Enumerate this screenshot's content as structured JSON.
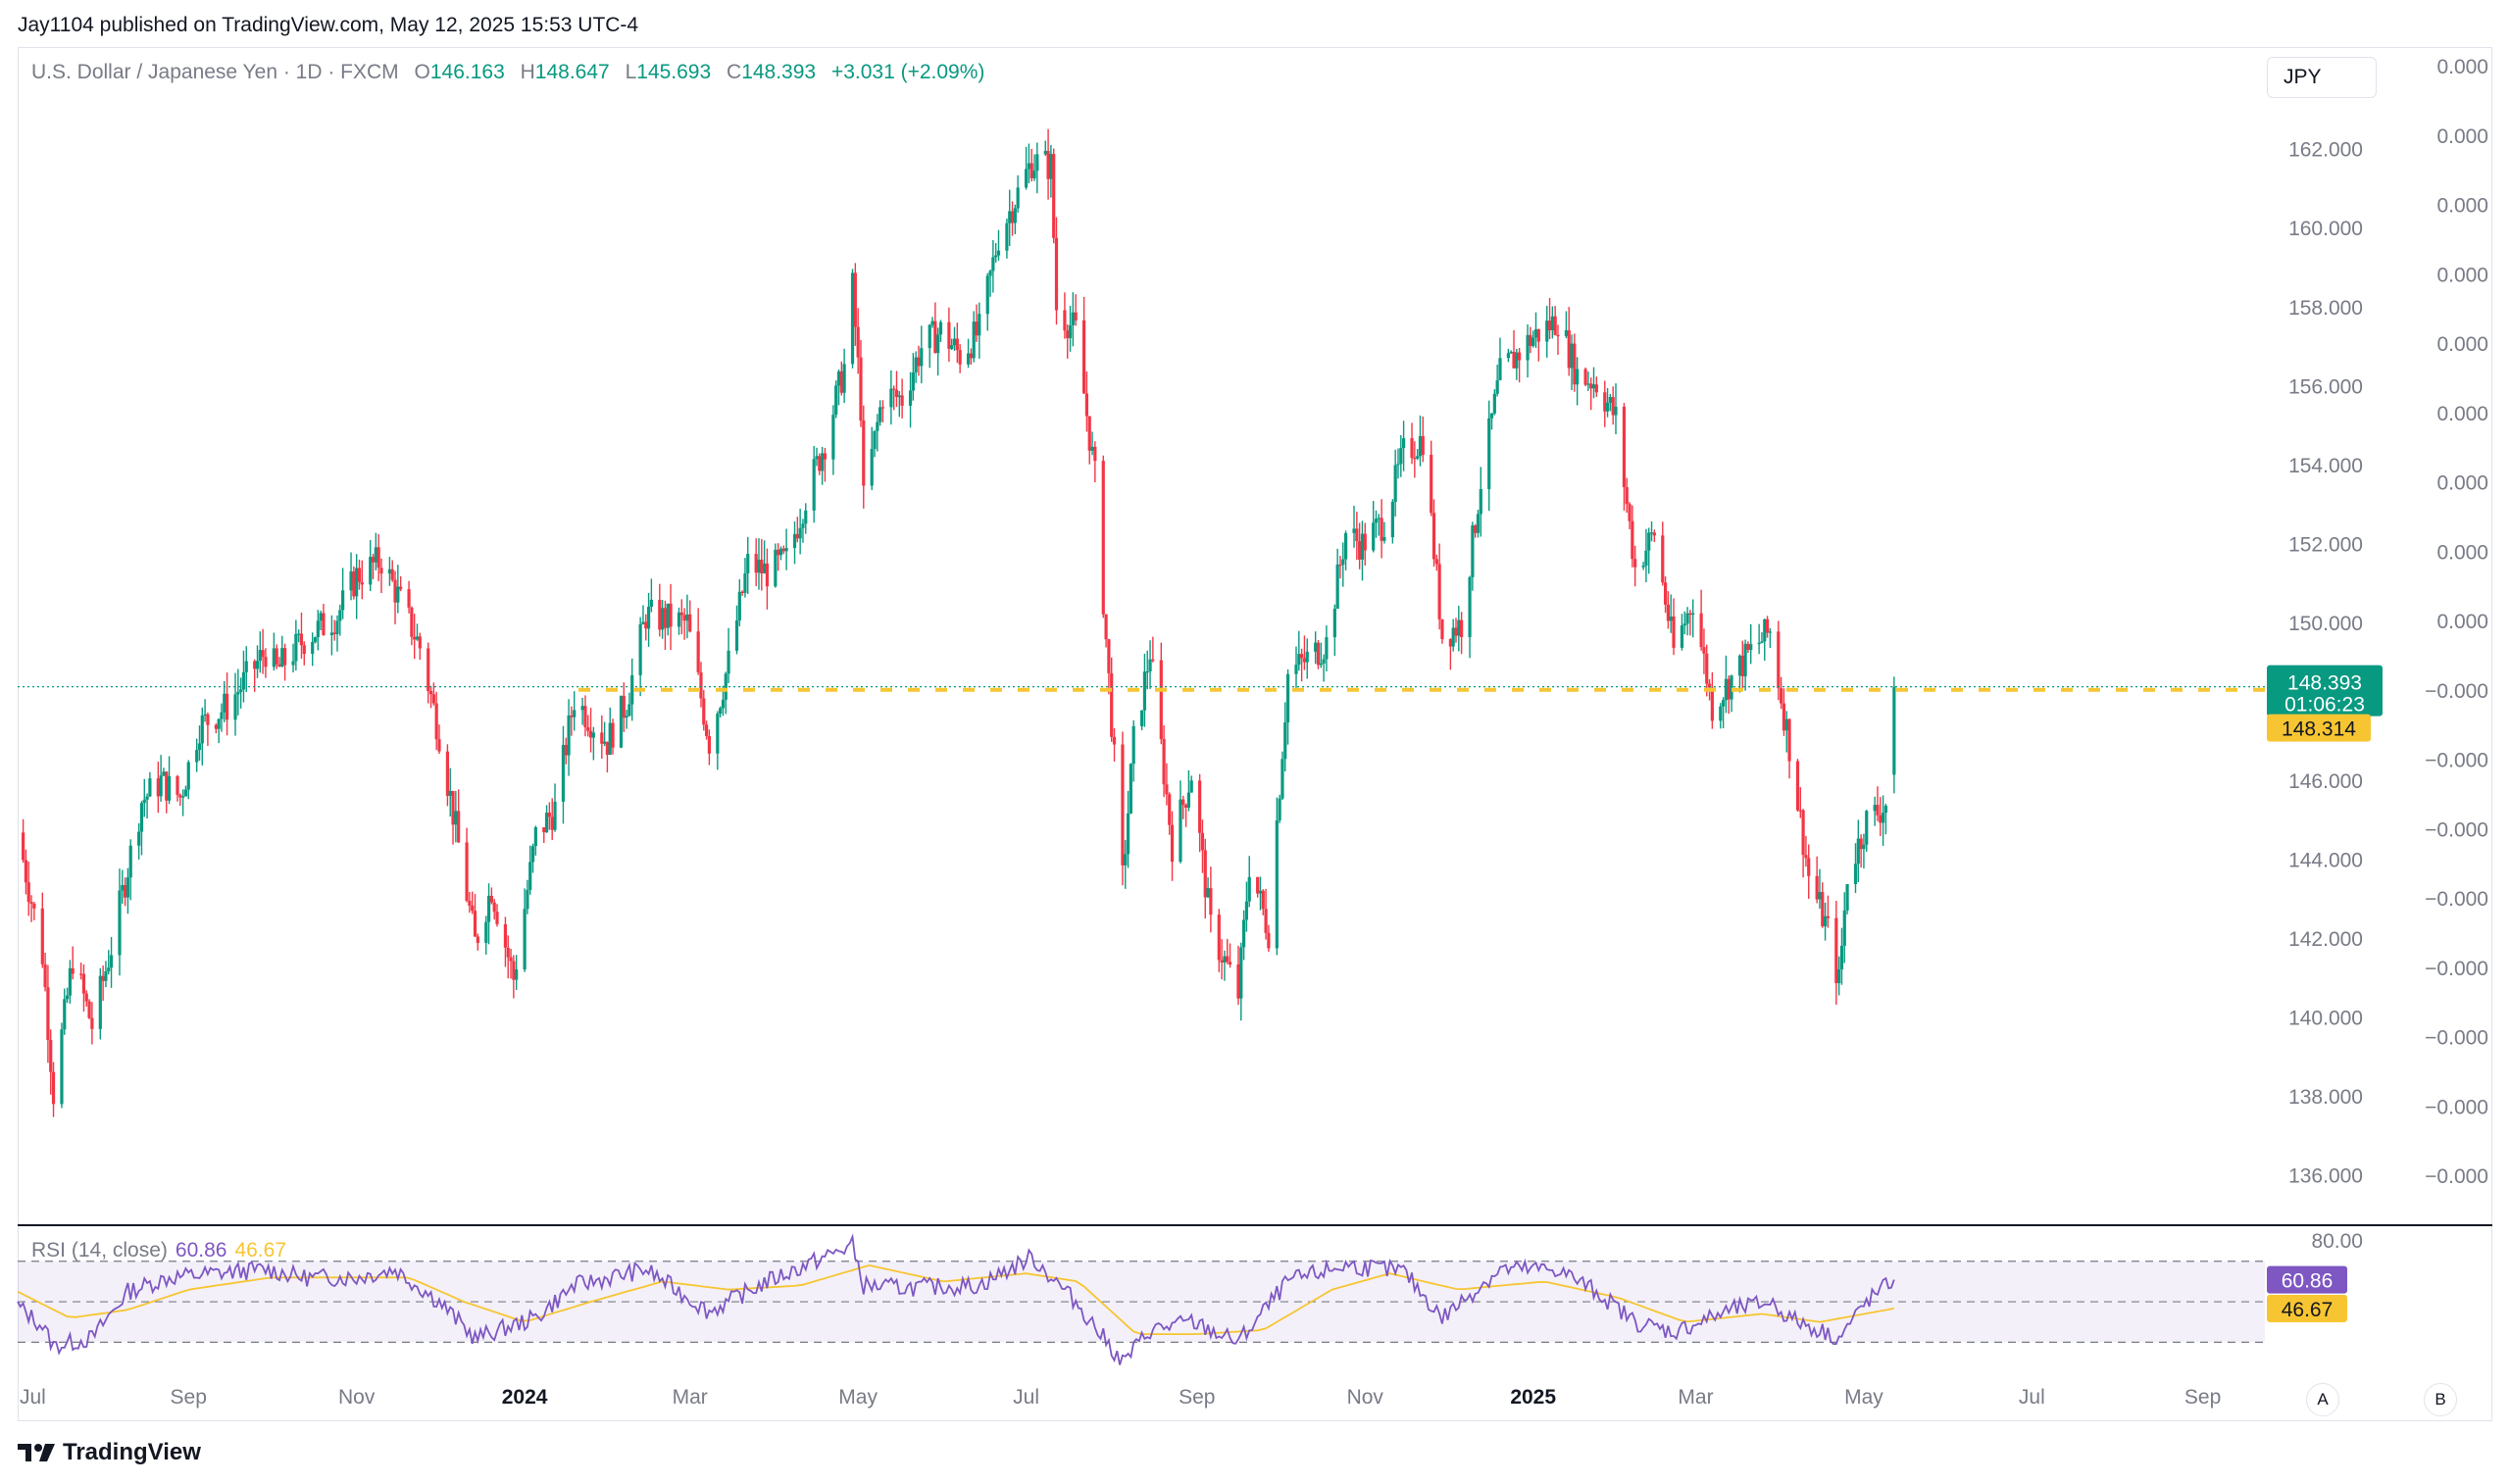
{
  "header": {
    "publisher_line": "Jay1104 published on TradingView.com, May 12, 2025 15:53 UTC-4"
  },
  "legend": {
    "symbol": "U.S. Dollar / Japanese Yen · 1D · FXCM",
    "open_label": "O",
    "open": "146.163",
    "high_label": "H",
    "high": "148.647",
    "low_label": "L",
    "low": "145.693",
    "close_label": "C",
    "close": "148.393",
    "change": "+3.031 (+2.09%)"
  },
  "currency_button": "JPY",
  "price_tags": {
    "last_price": "148.393",
    "countdown": "01:06:23",
    "reference_price": "148.314"
  },
  "rsi": {
    "title": "RSI (14, close)",
    "value": "60.86",
    "ma_value": "46.67"
  },
  "footer": {
    "brand": "TradingView"
  },
  "scale_buttons": {
    "auto": "A",
    "log": "B"
  },
  "colors": {
    "up": "#089981",
    "down": "#f23645",
    "rsi": "#7e57c2",
    "rsi_ma": "#f7c531",
    "ref_line": "#f7c531",
    "last_line": "#089981"
  },
  "icons": [
    "tradingview-logo-icon"
  ],
  "chart_data": [
    {
      "type": "candlestick",
      "title": "U.S. Dollar / Japanese Yen · 1D · FXCM",
      "y_axis": {
        "ticks": [
          136,
          138,
          140,
          142,
          144,
          146,
          150,
          152,
          154,
          156,
          158,
          160,
          162
        ],
        "tick_labels": [
          "136.000",
          "138.000",
          "140.000",
          "142.000",
          "144.000",
          "146.000",
          "150.000",
          "152.000",
          "154.000",
          "156.000",
          "158.000",
          "160.000",
          "162.000"
        ],
        "ylim": [
          134.8,
          164.6
        ]
      },
      "secondary_axis_labels": [
        "0.000",
        "0.000",
        "0.000",
        "0.000",
        "0.000",
        "0.000",
        "0.000",
        "0.000",
        "0.000",
        "−0.000",
        "−0.000",
        "−0.000",
        "−0.000",
        "−0.000",
        "−0.000",
        "−0.000",
        "−0.000"
      ],
      "x_axis": {
        "tick_labels": [
          "Jul",
          "Sep",
          "Nov",
          "2024",
          "Mar",
          "May",
          "Jul",
          "Sep",
          "Nov",
          "2025",
          "Mar",
          "May",
          "Jul",
          "Sep"
        ],
        "range": [
          "2023-07-01",
          "2025-09-20"
        ]
      },
      "price_path": [
        [
          "2023-07-01",
          144.7
        ],
        [
          "2023-07-10",
          141.6
        ],
        [
          "2023-07-14",
          138.1
        ],
        [
          "2023-07-21",
          141.5
        ],
        [
          "2023-07-28",
          139.8
        ],
        [
          "2023-08-04",
          141.8
        ],
        [
          "2023-08-15",
          145.5
        ],
        [
          "2023-08-22",
          146.0
        ],
        [
          "2023-08-29",
          145.6
        ],
        [
          "2023-09-05",
          147.4
        ],
        [
          "2023-09-15",
          147.9
        ],
        [
          "2023-09-29",
          149.3
        ],
        [
          "2023-10-03",
          148.8
        ],
        [
          "2023-10-13",
          149.6
        ],
        [
          "2023-10-25",
          150.2
        ],
        [
          "2023-11-01",
          151.2
        ],
        [
          "2023-11-10",
          151.6
        ],
        [
          "2023-11-16",
          150.7
        ],
        [
          "2023-11-24",
          149.4
        ],
        [
          "2023-12-01",
          147.2
        ],
        [
          "2023-12-07",
          144.8
        ],
        [
          "2023-12-14",
          141.9
        ],
        [
          "2023-12-20",
          143.3
        ],
        [
          "2023-12-28",
          141.0
        ],
        [
          "2024-01-05",
          144.6
        ],
        [
          "2024-01-12",
          145.3
        ],
        [
          "2024-01-19",
          148.1
        ],
        [
          "2024-01-31",
          147.0
        ],
        [
          "2024-02-07",
          148.0
        ],
        [
          "2024-02-14",
          150.2
        ],
        [
          "2024-02-29",
          150.0
        ],
        [
          "2024-03-08",
          147.0
        ],
        [
          "2024-03-15",
          149.0
        ],
        [
          "2024-03-22",
          151.5
        ],
        [
          "2024-03-29",
          151.3
        ],
        [
          "2024-04-05",
          151.6
        ],
        [
          "2024-04-12",
          153.2
        ],
        [
          "2024-04-19",
          154.6
        ],
        [
          "2024-04-26",
          156.5
        ],
        [
          "2024-04-29",
          158.5
        ],
        [
          "2024-05-02",
          155.5
        ],
        [
          "2024-05-03",
          153.1
        ],
        [
          "2024-05-10",
          155.8
        ],
        [
          "2024-05-17",
          155.7
        ],
        [
          "2024-05-24",
          157.0
        ],
        [
          "2024-05-31",
          157.4
        ],
        [
          "2024-06-07",
          156.8
        ],
        [
          "2024-06-14",
          157.4
        ],
        [
          "2024-06-21",
          159.8
        ],
        [
          "2024-06-28",
          160.9
        ],
        [
          "2024-07-03",
          161.7
        ],
        [
          "2024-07-10",
          161.6
        ],
        [
          "2024-07-12",
          158.0
        ],
        [
          "2024-07-19",
          157.4
        ],
        [
          "2024-07-26",
          153.7
        ],
        [
          "2024-08-02",
          146.5
        ],
        [
          "2024-08-05",
          143.5
        ],
        [
          "2024-08-09",
          147.0
        ],
        [
          "2024-08-15",
          149.3
        ],
        [
          "2024-08-23",
          144.4
        ],
        [
          "2024-08-30",
          146.2
        ],
        [
          "2024-09-06",
          142.3
        ],
        [
          "2024-09-16",
          140.6
        ],
        [
          "2024-09-20",
          143.9
        ],
        [
          "2024-09-27",
          142.2
        ],
        [
          "2024-10-04",
          148.7
        ],
        [
          "2024-10-11",
          149.1
        ],
        [
          "2024-10-18",
          149.5
        ],
        [
          "2024-10-25",
          152.3
        ],
        [
          "2024-10-31",
          152.0
        ],
        [
          "2024-11-08",
          152.6
        ],
        [
          "2024-11-15",
          154.3
        ],
        [
          "2024-11-22",
          154.7
        ],
        [
          "2024-11-29",
          149.7
        ],
        [
          "2024-12-06",
          150.0
        ],
        [
          "2024-12-13",
          153.6
        ],
        [
          "2024-12-20",
          156.3
        ],
        [
          "2024-12-31",
          157.2
        ],
        [
          "2025-01-10",
          157.7
        ],
        [
          "2025-01-17",
          156.3
        ],
        [
          "2025-01-24",
          156.1
        ],
        [
          "2025-01-31",
          155.2
        ],
        [
          "2025-02-07",
          151.4
        ],
        [
          "2025-02-14",
          152.3
        ],
        [
          "2025-02-21",
          149.3
        ],
        [
          "2025-02-28",
          150.6
        ],
        [
          "2025-03-07",
          147.9
        ],
        [
          "2025-03-14",
          148.6
        ],
        [
          "2025-03-21",
          149.3
        ],
        [
          "2025-03-28",
          149.8
        ],
        [
          "2025-04-04",
          146.9
        ],
        [
          "2025-04-11",
          143.6
        ],
        [
          "2025-04-18",
          142.2
        ],
        [
          "2025-04-22",
          140.9
        ],
        [
          "2025-04-25",
          143.6
        ],
        [
          "2025-05-02",
          145.0
        ],
        [
          "2025-05-09",
          145.4
        ],
        [
          "2025-05-12",
          148.393
        ]
      ],
      "last": {
        "date": "2025-05-12",
        "open": 146.163,
        "high": 148.647,
        "low": 145.693,
        "close": 148.393
      },
      "reference_line": 148.314
    },
    {
      "type": "line",
      "title": "RSI (14, close)",
      "y_axis": {
        "ticks": [
          80
        ],
        "tick_labels": [
          "80.00"
        ],
        "bands": [
          70,
          50,
          30
        ],
        "ylim": [
          20,
          82
        ]
      },
      "series": [
        {
          "name": "RSI",
          "points": [
            [
              "2023-07-01",
              48
            ],
            [
              "2023-07-10",
              38
            ],
            [
              "2023-07-14",
              28
            ],
            [
              "2023-07-28",
              32
            ],
            [
              "2023-08-10",
              55
            ],
            [
              "2023-08-25",
              62
            ],
            [
              "2023-09-10",
              64
            ],
            [
              "2023-09-29",
              66
            ],
            [
              "2023-10-13",
              62
            ],
            [
              "2023-11-01",
              62
            ],
            [
              "2023-11-15",
              66
            ],
            [
              "2023-12-01",
              50
            ],
            [
              "2023-12-14",
              32
            ],
            [
              "2024-01-05",
              42
            ],
            [
              "2024-01-19",
              58
            ],
            [
              "2024-02-14",
              66
            ],
            [
              "2024-03-08",
              45
            ],
            [
              "2024-03-29",
              60
            ],
            [
              "2024-04-12",
              68
            ],
            [
              "2024-04-29",
              78
            ],
            [
              "2024-05-03",
              58
            ],
            [
              "2024-05-17",
              57
            ],
            [
              "2024-06-14",
              58
            ],
            [
              "2024-07-03",
              72
            ],
            [
              "2024-07-19",
              50
            ],
            [
              "2024-08-05",
              20
            ],
            [
              "2024-08-15",
              36
            ],
            [
              "2024-08-30",
              40
            ],
            [
              "2024-09-16",
              30
            ],
            [
              "2024-10-04",
              60
            ],
            [
              "2024-10-25",
              68
            ],
            [
              "2024-11-15",
              65
            ],
            [
              "2024-11-29",
              42
            ],
            [
              "2024-12-20",
              66
            ],
            [
              "2025-01-10",
              66
            ],
            [
              "2025-01-24",
              55
            ],
            [
              "2025-02-07",
              40
            ],
            [
              "2025-02-21",
              35
            ],
            [
              "2025-03-14",
              46
            ],
            [
              "2025-03-28",
              50
            ],
            [
              "2025-04-04",
              42
            ],
            [
              "2025-04-22",
              32
            ],
            [
              "2025-05-02",
              50
            ],
            [
              "2025-05-12",
              60.86
            ]
          ]
        },
        {
          "name": "RSI-based MA",
          "points": [
            [
              "2023-07-01",
              55
            ],
            [
              "2023-07-20",
              42
            ],
            [
              "2023-08-10",
              46
            ],
            [
              "2023-09-01",
              56
            ],
            [
              "2023-10-01",
              62
            ],
            [
              "2023-11-01",
              62
            ],
            [
              "2023-11-20",
              62
            ],
            [
              "2023-12-10",
              50
            ],
            [
              "2024-01-01",
              40
            ],
            [
              "2024-01-25",
              50
            ],
            [
              "2024-02-20",
              60
            ],
            [
              "2024-03-15",
              56
            ],
            [
              "2024-04-10",
              58
            ],
            [
              "2024-05-05",
              68
            ],
            [
              "2024-06-01",
              60
            ],
            [
              "2024-07-01",
              64
            ],
            [
              "2024-07-20",
              60
            ],
            [
              "2024-08-10",
              34
            ],
            [
              "2024-09-01",
              34
            ],
            [
              "2024-09-25",
              36
            ],
            [
              "2024-10-20",
              56
            ],
            [
              "2024-11-10",
              64
            ],
            [
              "2024-12-05",
              56
            ],
            [
              "2025-01-05",
              60
            ],
            [
              "2025-02-01",
              52
            ],
            [
              "2025-02-25",
              40
            ],
            [
              "2025-03-25",
              44
            ],
            [
              "2025-04-15",
              40
            ],
            [
              "2025-05-12",
              46.67
            ]
          ]
        }
      ]
    }
  ]
}
